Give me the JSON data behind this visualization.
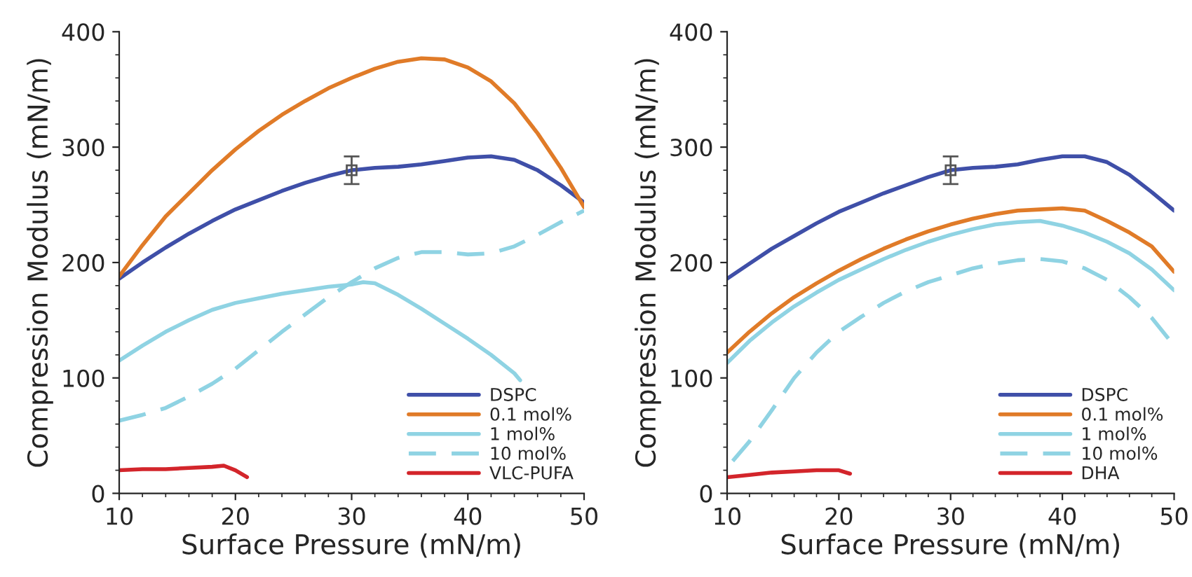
{
  "chart_data": [
    {
      "type": "line",
      "xlabel": "Surface Pressure (mN/m)",
      "ylabel": "Compression Modulus (mN/m)",
      "xlim": [
        10,
        50
      ],
      "xticks": [
        10,
        20,
        30,
        40,
        50
      ],
      "ylim": [
        0,
        400
      ],
      "yticks": [
        0,
        100,
        200,
        300,
        400
      ],
      "legend": "bottom right",
      "grid": false,
      "series": [
        {
          "name": "DSPC",
          "color": "#3f4fa8",
          "line_style": "solid",
          "x": [
            10,
            12,
            14,
            16,
            18,
            20,
            22,
            24,
            26,
            28,
            30,
            32,
            34,
            36,
            38,
            40,
            42,
            44,
            46,
            48,
            50
          ],
          "values": [
            186,
            200,
            213,
            225,
            236,
            246,
            254,
            262,
            269,
            275,
            280,
            282,
            283,
            285,
            288,
            291,
            292,
            289,
            280,
            267,
            252
          ]
        },
        {
          "name": "0.1 mol%",
          "color": "#e07b28",
          "line_style": "solid",
          "x": [
            10,
            12,
            14,
            16,
            18,
            20,
            22,
            24,
            26,
            28,
            30,
            32,
            34,
            36,
            38,
            40,
            42,
            44,
            46,
            48,
            50
          ],
          "values": [
            188,
            215,
            240,
            260,
            280,
            298,
            314,
            328,
            340,
            351,
            360,
            368,
            374,
            377,
            376,
            369,
            357,
            338,
            312,
            282,
            248
          ]
        },
        {
          "name": "1 mol%",
          "color": "#8fd3e3",
          "line_style": "solid",
          "x": [
            10,
            12,
            14,
            16,
            18,
            20,
            22,
            24,
            26,
            28,
            30,
            31,
            32,
            34,
            36,
            38,
            40,
            42,
            44,
            44.5
          ],
          "values": [
            115,
            128,
            140,
            150,
            159,
            165,
            169,
            173,
            176,
            179,
            181,
            183,
            182,
            172,
            160,
            147,
            134,
            120,
            104,
            98
          ]
        },
        {
          "name": "10 mol%",
          "color": "#8fd3e3",
          "line_style": "dashed",
          "x": [
            10,
            12,
            14,
            16,
            18,
            20,
            22,
            24,
            26,
            28,
            30,
            32,
            34,
            36,
            38,
            40,
            42,
            44,
            46,
            48,
            50
          ],
          "values": [
            63,
            68,
            74,
            84,
            95,
            108,
            124,
            140,
            155,
            170,
            183,
            195,
            204,
            209,
            209,
            207,
            208,
            214,
            224,
            235,
            245
          ]
        },
        {
          "name": "VLC-PUFA",
          "color": "#d3252b",
          "line_style": "solid",
          "x": [
            10,
            12,
            14,
            16,
            18,
            19,
            20,
            21
          ],
          "values": [
            20,
            21,
            21,
            22,
            23,
            24,
            20,
            14
          ]
        },
        {
          "type": "scatter",
          "color": "#555555",
          "marker": "square",
          "x": [
            30
          ],
          "values": [
            280
          ],
          "errors": [
            12
          ]
        }
      ]
    },
    {
      "type": "line",
      "xlabel": "Surface Pressure (mN/m)",
      "ylabel": "Compression Modulus (mN/m)",
      "xlim": [
        10,
        50
      ],
      "xticks": [
        10,
        20,
        30,
        40,
        50
      ],
      "ylim": [
        0,
        400
      ],
      "yticks": [
        0,
        100,
        200,
        300,
        400
      ],
      "legend": "bottom right",
      "grid": false,
      "series": [
        {
          "name": "DSPC",
          "color": "#3f4fa8",
          "line_style": "solid",
          "x": [
            10,
            12,
            14,
            16,
            18,
            20,
            22,
            24,
            26,
            28,
            30,
            32,
            34,
            36,
            38,
            40,
            42,
            44,
            46,
            48,
            50
          ],
          "values": [
            186,
            199,
            212,
            223,
            234,
            244,
            252,
            260,
            267,
            274,
            280,
            282,
            283,
            285,
            289,
            292,
            292,
            287,
            276,
            261,
            245
          ]
        },
        {
          "name": "0.1 mol%",
          "color": "#e07b28",
          "line_style": "solid",
          "x": [
            10,
            12,
            14,
            16,
            18,
            20,
            22,
            24,
            26,
            28,
            30,
            32,
            34,
            36,
            38,
            40,
            42,
            44,
            46,
            48,
            50
          ],
          "values": [
            122,
            140,
            156,
            170,
            182,
            193,
            203,
            212,
            220,
            227,
            233,
            238,
            242,
            245,
            246,
            247,
            245,
            236,
            226,
            214,
            192
          ]
        },
        {
          "name": "1 mol%",
          "color": "#8fd3e3",
          "line_style": "solid",
          "x": [
            10,
            12,
            14,
            16,
            18,
            20,
            22,
            24,
            26,
            28,
            30,
            32,
            34,
            36,
            38,
            40,
            42,
            44,
            46,
            48,
            50
          ],
          "values": [
            113,
            132,
            148,
            162,
            174,
            185,
            194,
            203,
            211,
            218,
            224,
            229,
            233,
            235,
            236,
            232,
            226,
            218,
            208,
            194,
            176
          ]
        },
        {
          "name": "10 mol%",
          "color": "#8fd3e3",
          "line_style": "dashed",
          "x": [
            10.5,
            12,
            14,
            16,
            18,
            20,
            22,
            24,
            26,
            28,
            30,
            32,
            34,
            36,
            38,
            40,
            42,
            44,
            46,
            48,
            50
          ],
          "values": [
            28,
            45,
            72,
            100,
            122,
            140,
            153,
            165,
            175,
            183,
            189,
            195,
            199,
            202,
            203,
            201,
            195,
            185,
            170,
            152,
            128
          ]
        },
        {
          "name": "DHA",
          "color": "#d3252b",
          "line_style": "solid",
          "x": [
            10,
            12,
            14,
            16,
            18,
            20,
            21
          ],
          "values": [
            14,
            16,
            18,
            19,
            20,
            20,
            17
          ]
        },
        {
          "type": "scatter",
          "color": "#555555",
          "marker": "square",
          "x": [
            30
          ],
          "values": [
            280
          ],
          "errors": [
            12
          ]
        }
      ]
    }
  ]
}
